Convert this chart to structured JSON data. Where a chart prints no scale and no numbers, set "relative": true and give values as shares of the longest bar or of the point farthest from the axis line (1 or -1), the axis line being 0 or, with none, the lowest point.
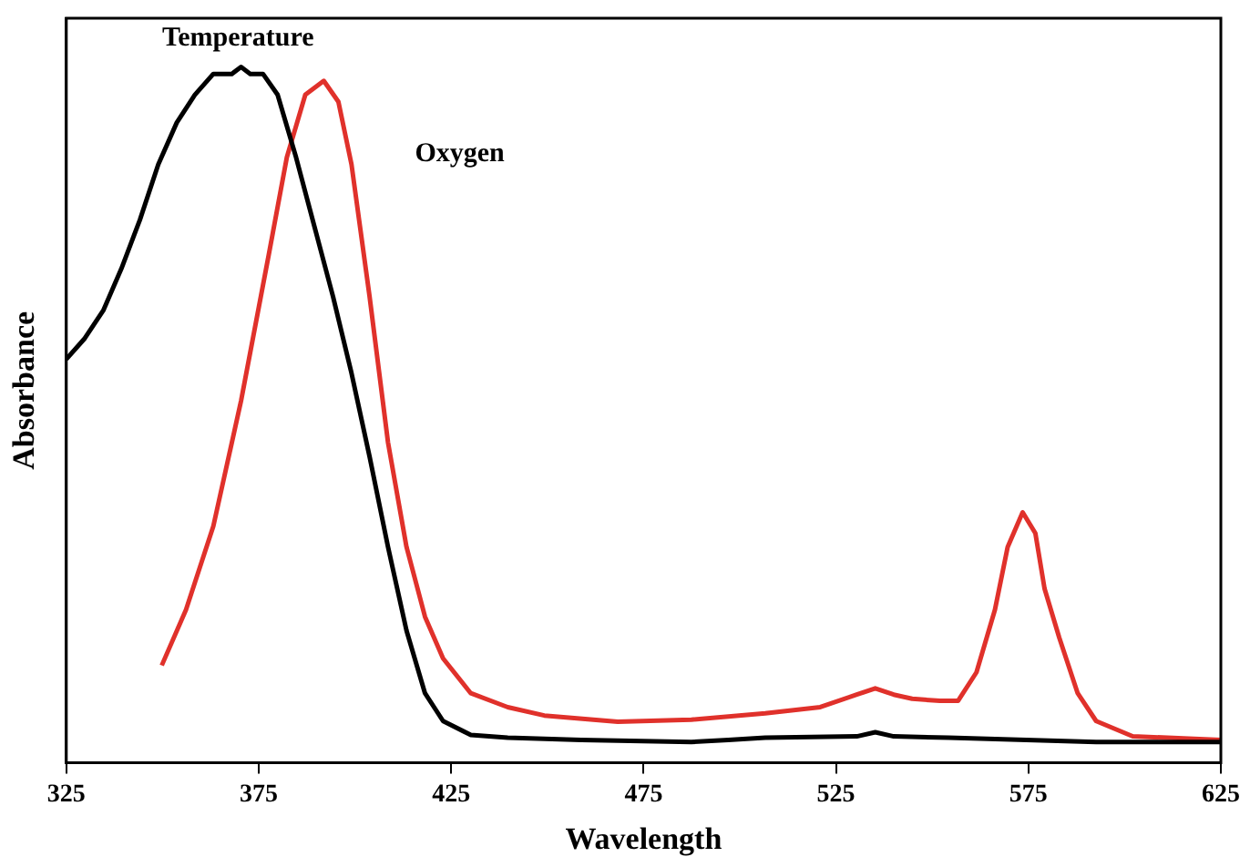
{
  "chart_data": {
    "type": "line",
    "relative": true,
    "xlabel": "Wavelength",
    "ylabel": "Absorbance",
    "xlim": [
      325,
      625
    ],
    "xticks": [
      325,
      375,
      425,
      475,
      525,
      575,
      625
    ],
    "grid": false,
    "legend": false,
    "marker": "none",
    "line_style": "solid",
    "series": [
      {
        "name": "Temperature",
        "color": "#000000",
        "x": [
          325,
          329.8,
          334.6,
          339.3,
          344.1,
          348.9,
          353.7,
          358.4,
          363.2,
          368.0,
          370.4,
          372.8,
          376.1,
          379.9,
          384.7,
          389.5,
          394.3,
          399.1,
          403.8,
          408.6,
          413.4,
          418.2,
          422.9,
          430.1,
          439.7,
          458.8,
          487.4,
          497.0,
          506.6,
          530.4,
          535.2,
          540.0,
          554.3,
          592.6,
          625
        ],
        "values": [
          0.58,
          0.61,
          0.65,
          0.71,
          0.78,
          0.86,
          0.92,
          0.96,
          0.99,
          0.99,
          1,
          0.99,
          0.99,
          0.96,
          0.87,
          0.77,
          0.67,
          0.56,
          0.44,
          0.31,
          0.19,
          0.1,
          0.06,
          0.04,
          0.036,
          0.033,
          0.03,
          0.033,
          0.036,
          0.038,
          0.044,
          0.038,
          0.036,
          0.03,
          0.03
        ]
      },
      {
        "name": "Oxygen",
        "color": "#e0312b",
        "x": [
          349.8,
          356.1,
          363.2,
          370.4,
          377.6,
          382.3,
          387.1,
          391.9,
          395.7,
          399.1,
          403.8,
          408.6,
          413.4,
          418.2,
          422.9,
          430.1,
          439.7,
          449.2,
          468.3,
          487.4,
          506.6,
          520.9,
          530.4,
          535.2,
          540.0,
          544.8,
          552.0,
          556.7,
          561.5,
          566.3,
          569.6,
          573.5,
          576.8,
          579.2,
          583.0,
          587.8,
          592.6,
          602.1,
          625
        ],
        "values": [
          0.14,
          0.22,
          0.34,
          0.52,
          0.73,
          0.87,
          0.96,
          0.98,
          0.95,
          0.86,
          0.67,
          0.46,
          0.31,
          0.21,
          0.15,
          0.1,
          0.08,
          0.068,
          0.059,
          0.062,
          0.071,
          0.08,
          0.098,
          0.107,
          0.098,
          0.092,
          0.089,
          0.089,
          0.13,
          0.22,
          0.31,
          0.36,
          0.33,
          0.25,
          0.18,
          0.1,
          0.06,
          0.038,
          0.033
        ]
      }
    ]
  }
}
